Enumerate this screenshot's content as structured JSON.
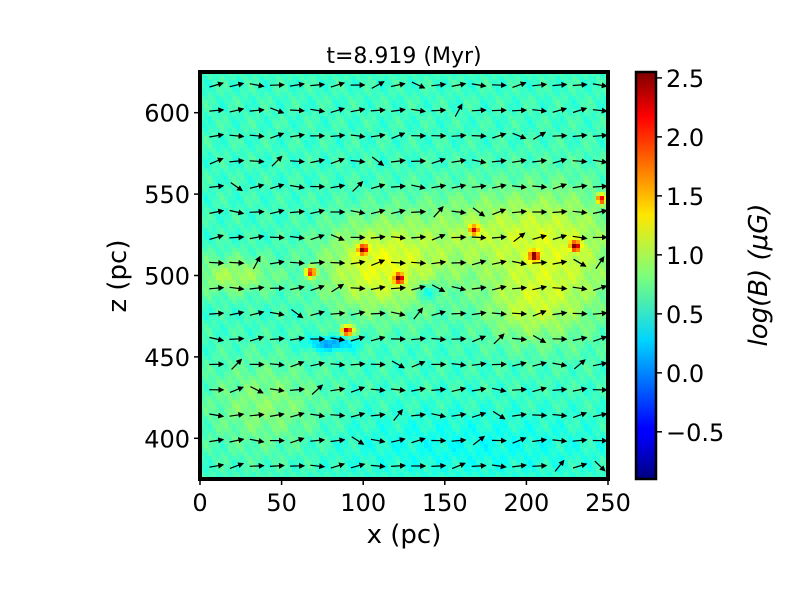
{
  "chart_data": {
    "type": "heatmap",
    "title": "t=8.919 (Myr)",
    "xlabel": "x (pc)",
    "ylabel": "z (pc)",
    "xlim": [
      0,
      250
    ],
    "ylim": [
      375,
      625
    ],
    "xticks": [
      0,
      50,
      100,
      150,
      200,
      250
    ],
    "yticks": [
      400,
      450,
      500,
      550,
      600
    ],
    "colorbar": {
      "label": "log(B) (μG)",
      "range": [
        -0.9,
        2.55
      ],
      "ticks": [
        -0.5,
        0.0,
        0.5,
        1.0,
        1.5,
        2.0,
        2.5
      ],
      "tick_labels": [
        "−0.5",
        "0.0",
        "0.5",
        "1.0",
        "1.5",
        "2.0",
        "2.5"
      ],
      "colormap": "jet"
    },
    "field": {
      "background_value": 0.6,
      "features": [
        {
          "x": 110,
          "z": 505,
          "value": 1.15,
          "sx": 25,
          "sz": 20
        },
        {
          "x": 180,
          "z": 525,
          "value": 0.95,
          "sx": 35,
          "sz": 20
        },
        {
          "x": 225,
          "z": 510,
          "value": 0.95,
          "sx": 25,
          "sz": 30
        },
        {
          "x": 20,
          "z": 500,
          "value": 0.95,
          "sx": 18,
          "sz": 8
        },
        {
          "x": 200,
          "z": 480,
          "value": 0.9,
          "sx": 20,
          "sz": 15
        },
        {
          "x": 165,
          "z": 395,
          "value": 0.45,
          "sx": 60,
          "sz": 15
        },
        {
          "x": 40,
          "z": 420,
          "value": 0.85,
          "sx": 25,
          "sz": 20
        },
        {
          "x": 100,
          "z": 516,
          "value": 2.2,
          "sx": 2,
          "sz": 2
        },
        {
          "x": 122,
          "z": 498,
          "value": 2.1,
          "sx": 2,
          "sz": 2
        },
        {
          "x": 90,
          "z": 466,
          "value": 2.3,
          "sx": 2.5,
          "sz": 2
        },
        {
          "x": 68,
          "z": 502,
          "value": 2.0,
          "sx": 2,
          "sz": 2
        },
        {
          "x": 205,
          "z": 512,
          "value": 2.2,
          "sx": 2,
          "sz": 2
        },
        {
          "x": 230,
          "z": 518,
          "value": 2.3,
          "sx": 2,
          "sz": 2
        },
        {
          "x": 246,
          "z": 547,
          "value": 2.0,
          "sx": 2,
          "sz": 2
        },
        {
          "x": 168,
          "z": 528,
          "value": 1.9,
          "sx": 2,
          "sz": 2
        },
        {
          "x": 80,
          "z": 458,
          "value": 0.05,
          "sx": 10,
          "sz": 3
        },
        {
          "x": 140,
          "z": 490,
          "value": 0.3,
          "sx": 6,
          "sz": 4
        }
      ]
    },
    "vectors": {
      "x_range": [
        10,
        245
      ],
      "z_range": [
        383,
        617
      ],
      "nx": 20,
      "nz": 16,
      "base_angle_deg": 5
    }
  }
}
